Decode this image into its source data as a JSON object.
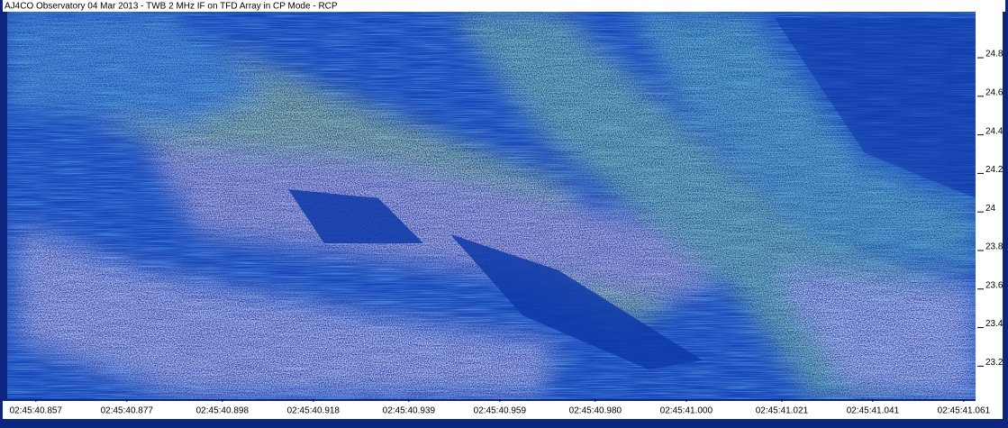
{
  "chart_data": {
    "type": "spectrogram",
    "title": "AJ4CO Observatory 04 Mar 2013 - TWB 2 MHz IF on TFD Array in CP Mode - RCP",
    "xlim": [
      40.8507,
      41.0636
    ],
    "xticks": [
      {
        "value": 40.857,
        "label": "02:45:40.857"
      },
      {
        "value": 40.877,
        "label": "02:45:40.877"
      },
      {
        "value": 40.898,
        "label": "02:45:40.898"
      },
      {
        "value": 40.918,
        "label": "02:45:40.918"
      },
      {
        "value": 40.939,
        "label": "02:45:40.939"
      },
      {
        "value": 40.959,
        "label": "02:45:40.959"
      },
      {
        "value": 40.98,
        "label": "02:45:40.980"
      },
      {
        "value": 41.0,
        "label": "02:45:41.000"
      },
      {
        "value": 41.021,
        "label": "02:45:41.021"
      },
      {
        "value": 41.041,
        "label": "02:45:41.041"
      },
      {
        "value": 41.061,
        "label": "02:45:41.061"
      }
    ],
    "ylim": [
      23.01,
      25.02
    ],
    "yticks": [
      23.2,
      23.4,
      23.6,
      23.8,
      24.0,
      24.2,
      24.4,
      24.6,
      24.8
    ],
    "yaxis_side": "right"
  }
}
